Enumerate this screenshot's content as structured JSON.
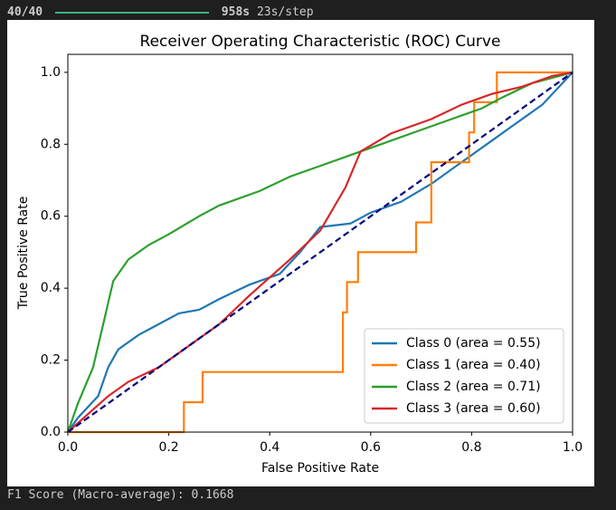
{
  "header": {
    "steps": "40/40",
    "elapsed": "958s",
    "rate": "23s/step"
  },
  "chart_data": {
    "type": "line",
    "title": "Receiver Operating Characteristic (ROC) Curve",
    "x_label": "False Positive Rate",
    "y_label": "True Positive Rate",
    "xlim": [
      0,
      1
    ],
    "ylim": [
      0,
      1.05
    ],
    "xticks": [
      {
        "value": 0,
        "label": "0.0"
      },
      {
        "value": 0.2,
        "label": "0.2"
      },
      {
        "value": 0.4,
        "label": "0.4"
      },
      {
        "value": 0.6,
        "label": "0.6"
      },
      {
        "value": 0.8,
        "label": "0.8"
      },
      {
        "value": 1,
        "label": "1.0"
      }
    ],
    "yticks": [
      {
        "value": 0,
        "label": "0.0"
      },
      {
        "value": 0.2,
        "label": "0.2"
      },
      {
        "value": 0.4,
        "label": "0.4"
      },
      {
        "value": 0.6,
        "label": "0.6"
      },
      {
        "value": 0.8,
        "label": "0.8"
      },
      {
        "value": 1,
        "label": "1.0"
      }
    ],
    "legend": "lower right",
    "reference_line": {
      "x": [
        0,
        1
      ],
      "y": [
        0,
        1
      ],
      "color": "#000080"
    },
    "series": [
      {
        "name": "Class 0 (area = 0.55)",
        "color": "#1f77b4",
        "x": [
          0,
          0.02,
          0.06,
          0.08,
          0.1,
          0.14,
          0.18,
          0.22,
          0.26,
          0.3,
          0.36,
          0.42,
          0.46,
          0.5,
          0.56,
          0.6,
          0.66,
          0.72,
          0.78,
          0.84,
          0.88,
          0.94,
          1
        ],
        "values": [
          0,
          0.04,
          0.1,
          0.18,
          0.23,
          0.27,
          0.3,
          0.33,
          0.34,
          0.37,
          0.41,
          0.44,
          0.5,
          0.57,
          0.58,
          0.61,
          0.64,
          0.69,
          0.75,
          0.81,
          0.85,
          0.91,
          1
        ]
      },
      {
        "name": "Class 1 (area = 0.40)",
        "color": "#ff7f0e",
        "x": [
          0,
          0.23,
          0.23,
          0.267,
          0.267,
          0.545,
          0.545,
          0.553,
          0.553,
          0.575,
          0.575,
          0.69,
          0.69,
          0.72,
          0.72,
          0.795,
          0.795,
          0.805,
          0.805,
          0.85,
          0.85,
          1
        ],
        "values": [
          0,
          0,
          0.083,
          0.083,
          0.167,
          0.167,
          0.333,
          0.333,
          0.417,
          0.417,
          0.5,
          0.5,
          0.583,
          0.583,
          0.75,
          0.75,
          0.833,
          0.833,
          0.917,
          0.917,
          1,
          1
        ]
      },
      {
        "name": "Class 2 (area = 0.71)",
        "color": "#2ca02c",
        "x": [
          0,
          0.02,
          0.05,
          0.07,
          0.09,
          0.12,
          0.16,
          0.2,
          0.26,
          0.3,
          0.38,
          0.44,
          0.5,
          0.56,
          0.62,
          0.7,
          0.76,
          0.82,
          0.86,
          0.92,
          1
        ],
        "values": [
          0,
          0.08,
          0.18,
          0.3,
          0.42,
          0.48,
          0.52,
          0.55,
          0.6,
          0.63,
          0.67,
          0.71,
          0.74,
          0.77,
          0.8,
          0.84,
          0.87,
          0.9,
          0.93,
          0.97,
          1
        ]
      },
      {
        "name": "Class 3 (area = 0.60)",
        "color": "#d62728",
        "x": [
          0,
          0.04,
          0.08,
          0.12,
          0.18,
          0.24,
          0.3,
          0.36,
          0.44,
          0.5,
          0.55,
          0.58,
          0.64,
          0.72,
          0.78,
          0.84,
          0.9,
          0.96,
          1
        ],
        "values": [
          0,
          0.05,
          0.1,
          0.14,
          0.18,
          0.24,
          0.3,
          0.38,
          0.48,
          0.56,
          0.68,
          0.78,
          0.83,
          0.87,
          0.91,
          0.94,
          0.96,
          0.99,
          1
        ]
      }
    ]
  },
  "footer": "F1 Score (Macro-average): 0.1668"
}
